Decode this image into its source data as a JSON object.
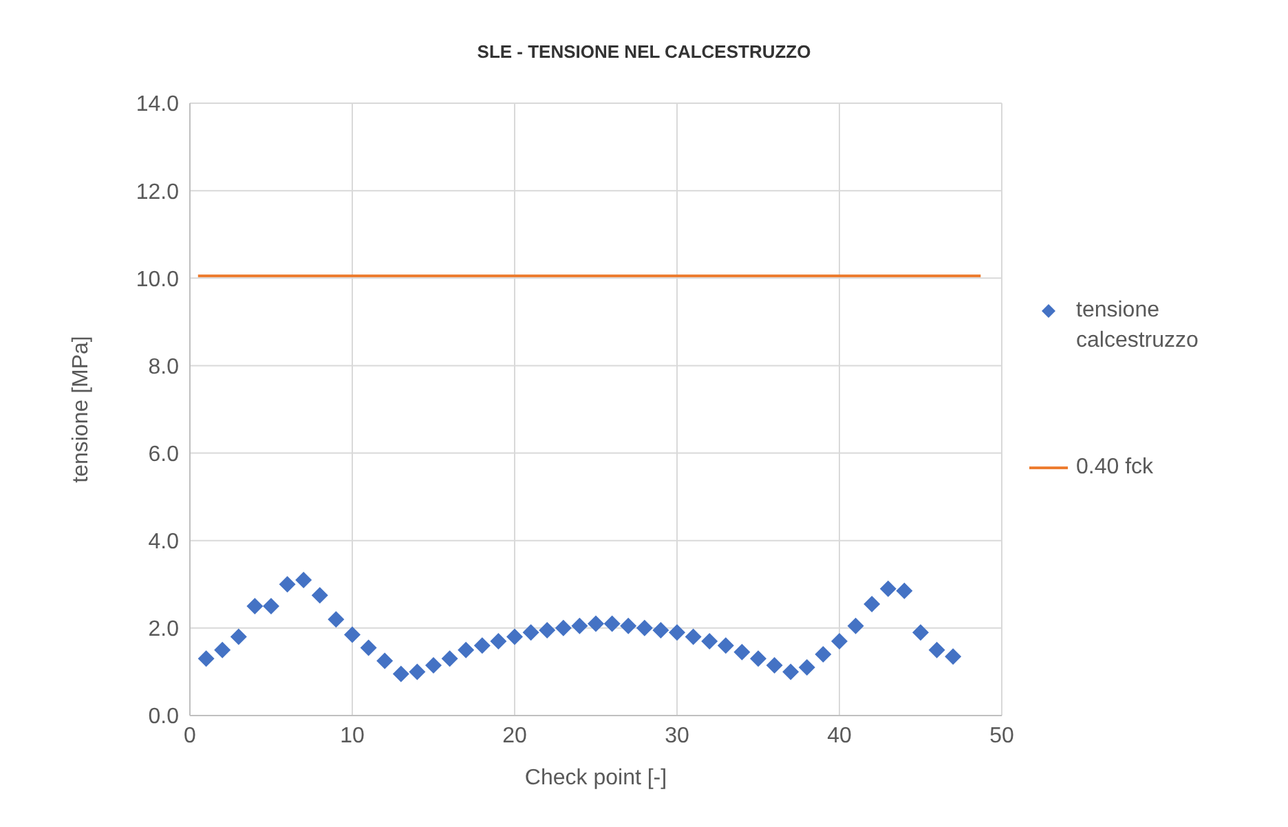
{
  "chart_data": {
    "type": "scatter",
    "title": "SLE - TENSIONE NEL CALCESTRUZZO",
    "xlabel": "Check point [-]",
    "ylabel": "tensione   [MPa]",
    "xlim": [
      0,
      50
    ],
    "xticks": [
      0,
      10,
      20,
      30,
      40,
      50
    ],
    "ylim": [
      0,
      14
    ],
    "yticks": [
      {
        "value": 0,
        "label": "0.0"
      },
      {
        "value": 2,
        "label": "2.0"
      },
      {
        "value": 4,
        "label": "4.0"
      },
      {
        "value": 6,
        "label": "6.0"
      },
      {
        "value": 8,
        "label": "8.0"
      },
      {
        "value": 10,
        "label": "10.0"
      },
      {
        "value": 12,
        "label": "12.0"
      },
      {
        "value": 14,
        "label": "14.0"
      }
    ],
    "grid": true,
    "legend": "right",
    "series": [
      {
        "name": "tensione calcestruzzo",
        "marker": "diamond",
        "color": "#4472c4",
        "x": [
          1,
          2,
          3,
          4,
          5,
          6,
          7,
          8,
          9,
          10,
          11,
          12,
          13,
          14,
          15,
          16,
          17,
          18,
          19,
          20,
          21,
          22,
          23,
          24,
          25,
          26,
          27,
          28,
          29,
          30,
          31,
          32,
          33,
          34,
          35,
          36,
          37,
          38,
          39,
          40,
          41,
          42,
          43,
          44,
          45,
          46,
          47
        ],
        "values": [
          1.3,
          1.5,
          1.8,
          2.5,
          2.5,
          3.0,
          3.1,
          2.75,
          2.2,
          1.85,
          1.55,
          1.25,
          0.95,
          1.0,
          1.15,
          1.3,
          1.5,
          1.6,
          1.7,
          1.8,
          1.9,
          1.95,
          2.0,
          2.05,
          2.1,
          2.1,
          2.05,
          2.0,
          1.95,
          1.9,
          1.8,
          1.7,
          1.6,
          1.45,
          1.3,
          1.15,
          1.0,
          1.1,
          1.4,
          1.7,
          2.05,
          2.55,
          2.9,
          2.85,
          1.9,
          1.5,
          1.35
        ]
      },
      {
        "name": "0.40 fck",
        "type": "line",
        "marker": "none",
        "color": "#ed7d31",
        "x": [
          0.5,
          48.7
        ],
        "values": [
          10.05,
          10.05
        ]
      }
    ]
  }
}
